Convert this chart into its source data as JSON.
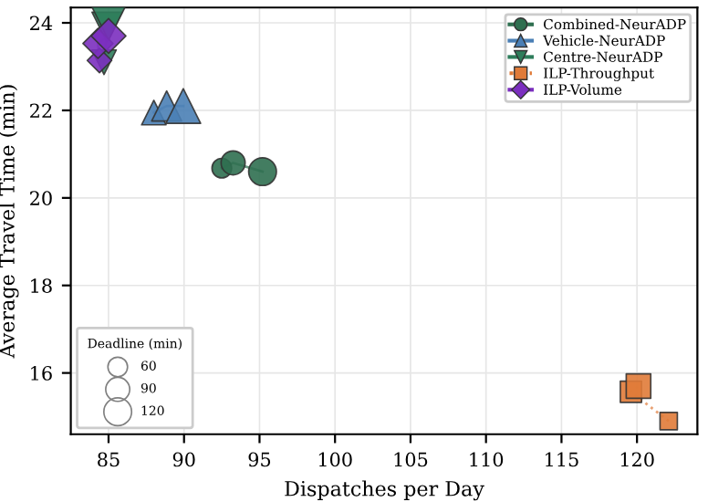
{
  "chart_data": {
    "type": "bubble",
    "xlabel": "Dispatches per Day",
    "ylabel": "Average Travel Time (min)",
    "xlim": [
      82.5,
      124
    ],
    "ylim": [
      14.6,
      24.35
    ],
    "xticks": [
      85,
      90,
      95,
      100,
      105,
      110,
      115,
      120
    ],
    "yticks": [
      16,
      18,
      20,
      22,
      24
    ],
    "grid": true,
    "legend": "top right",
    "legend_title": "Deadline (min)",
    "size_legend": [
      60,
      90,
      120
    ],
    "series": [
      {
        "name": "Combined-NeurADP",
        "color": "#2f6f50",
        "marker": "circle",
        "line_style": "solid",
        "x": [
          92.5,
          93.25,
          95.2
        ],
        "values": [
          20.68,
          20.8,
          20.6
        ],
        "sizes": [
          60,
          90,
          120
        ]
      },
      {
        "name": "Vehicle-NeurADP",
        "color": "#4a7fb5",
        "marker": "triangle",
        "line_style": "solid",
        "x": [
          88.0,
          88.85,
          89.95
        ],
        "values": [
          21.95,
          22.1,
          22.1
        ],
        "sizes": [
          60,
          90,
          120
        ]
      },
      {
        "name": "Centre-NeurADP",
        "color": "#2e7d5b",
        "marker": "triangle_down",
        "line_style": "solid",
        "x": [
          84.7,
          84.9,
          85.0
        ],
        "values": [
          23.1,
          23.9,
          24.0
        ],
        "sizes": [
          60,
          90,
          120
        ]
      },
      {
        "name": "ILP-Throughput",
        "color": "#e07b39",
        "marker": "square",
        "line_style": "dotted",
        "x": [
          122.1,
          119.6,
          120.1
        ],
        "values": [
          14.9,
          15.57,
          15.7
        ],
        "sizes": [
          60,
          90,
          120
        ]
      },
      {
        "name": "ILP-Volume",
        "color": "#7b2fbf",
        "marker": "diamond",
        "line_style": "solid",
        "x": [
          84.4,
          84.3,
          85.0
        ],
        "values": [
          23.14,
          23.53,
          23.7
        ],
        "sizes": [
          60,
          90,
          120
        ]
      }
    ]
  }
}
